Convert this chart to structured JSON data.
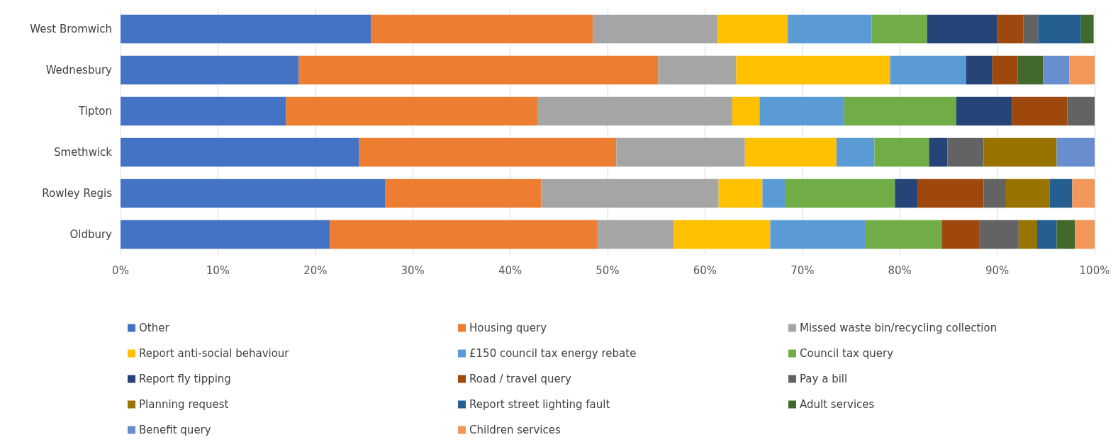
{
  "chart_data": {
    "type": "bar",
    "orientation": "horizontal",
    "stacked": true,
    "categories": [
      "West Bromwich",
      "Wednesbury",
      "Tipton",
      "Smethwick",
      "Rowley Regis",
      "Oldbury"
    ],
    "series": [
      {
        "name": "Other",
        "color": "#4472c4",
        "values": [
          25.7,
          18.3,
          17.0,
          24.5,
          27.2,
          21.5
        ]
      },
      {
        "name": "Housing query",
        "color": "#ed7d31",
        "values": [
          22.8,
          36.9,
          25.8,
          26.4,
          16.0,
          27.5
        ]
      },
      {
        "name": "Missed waste bin/recycling collection",
        "color": "#a5a5a5",
        "values": [
          12.8,
          8.0,
          20.0,
          13.2,
          18.2,
          7.8
        ]
      },
      {
        "name": "Report anti-social behaviour",
        "color": "#ffc000",
        "values": [
          7.2,
          15.8,
          2.8,
          9.4,
          4.5,
          9.9
        ]
      },
      {
        "name": "£150 council tax energy rebate",
        "color": "#5b9bd5",
        "values": [
          8.6,
          7.8,
          8.7,
          3.9,
          2.3,
          9.8
        ]
      },
      {
        "name": "Council tax query",
        "color": "#70ad47",
        "values": [
          5.7,
          null,
          11.5,
          5.6,
          11.3,
          7.8
        ]
      },
      {
        "name": "Report fly tipping",
        "color": "#264478",
        "values": [
          7.2,
          2.7,
          5.7,
          1.9,
          2.3,
          null
        ]
      },
      {
        "name": "Road / travel query",
        "color": "#9e480e",
        "values": [
          2.7,
          2.6,
          5.7,
          null,
          6.8,
          3.9
        ]
      },
      {
        "name": "Pay a bill",
        "color": "#636363",
        "values": [
          1.5,
          null,
          2.8,
          3.7,
          2.3,
          4.0
        ]
      },
      {
        "name": "Planning request",
        "color": "#997300",
        "values": [
          null,
          null,
          null,
          7.5,
          4.5,
          1.9
        ]
      },
      {
        "name": "Report street lighting fault",
        "color": "#255e91",
        "values": [
          4.4,
          null,
          null,
          null,
          2.3,
          2.0
        ]
      },
      {
        "name": "Adult services",
        "color": "#43682b",
        "values": [
          1.3,
          2.6,
          null,
          null,
          null,
          1.9
        ]
      },
      {
        "name": "Benefit query",
        "color": "#698ed0",
        "values": [
          null,
          2.7,
          null,
          3.9,
          null,
          null
        ]
      },
      {
        "name": "Children services",
        "color": "#f1975a",
        "values": [
          null,
          2.6,
          null,
          null,
          2.3,
          2.0
        ]
      }
    ],
    "xlim": [
      0,
      100
    ],
    "xticks": [
      {
        "value": 0,
        "label": "0%"
      },
      {
        "value": 10,
        "label": "10%"
      },
      {
        "value": 20,
        "label": "20%"
      },
      {
        "value": 30,
        "label": "30%"
      },
      {
        "value": 40,
        "label": "40%"
      },
      {
        "value": 50,
        "label": "50%"
      },
      {
        "value": 60,
        "label": "60%"
      },
      {
        "value": 70,
        "label": "70%"
      },
      {
        "value": 80,
        "label": "80%"
      },
      {
        "value": 90,
        "label": "90%"
      },
      {
        "value": 100,
        "label": "100%"
      }
    ],
    "grid": "x",
    "legend": "bottom"
  }
}
